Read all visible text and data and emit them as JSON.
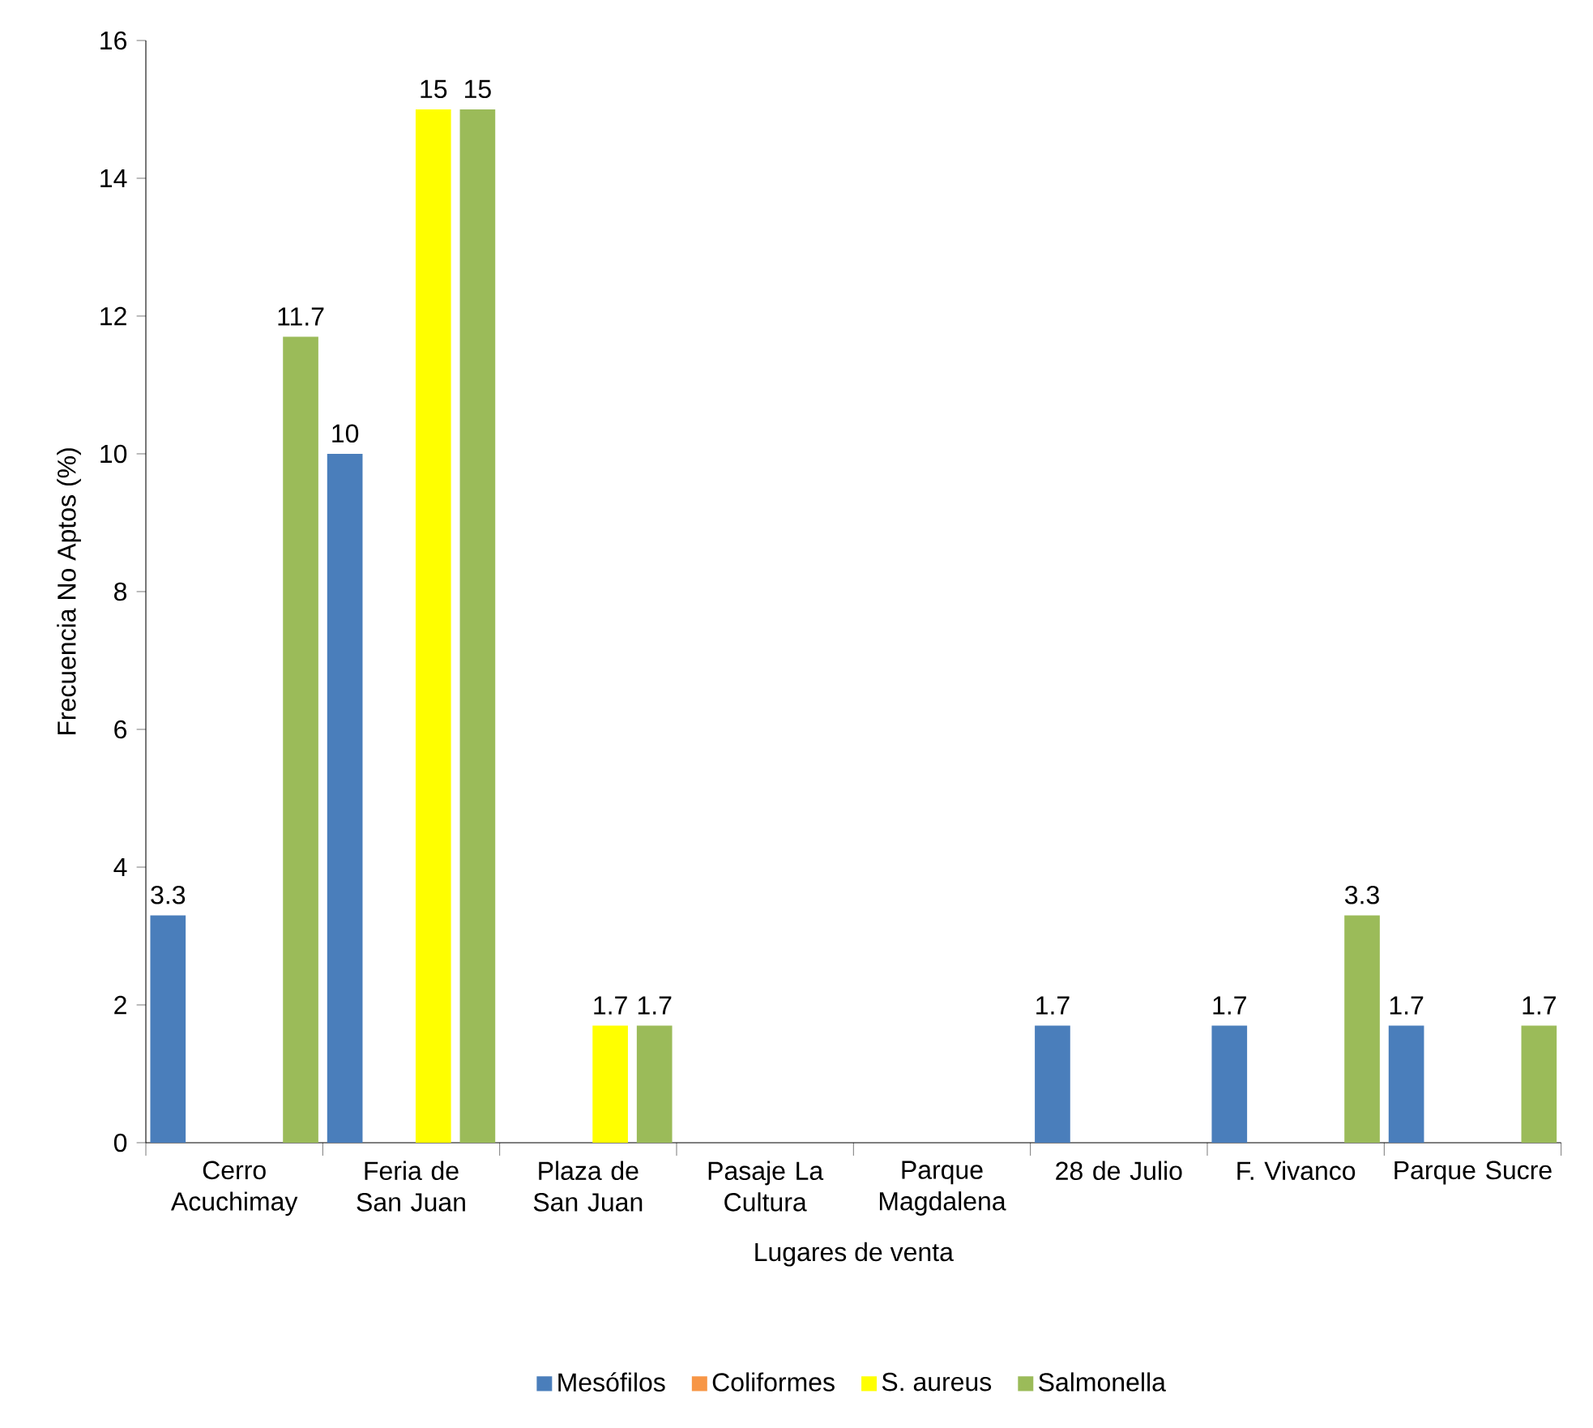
{
  "chart_data": {
    "type": "bar",
    "xlabel": "Lugares de venta",
    "ylabel": "Frecuencia No Aptos (%)",
    "categories": [
      "Cerro Acuchimay",
      "Feria de San Juan",
      "Plaza de San Juan",
      "Pasaje La Cultura",
      "Parque Magdalena",
      "28 de Julio",
      "F. Vivanco",
      "Parque Sucre"
    ],
    "series": [
      {
        "name": "Mesófilos",
        "color": "#4a7ebb",
        "values": [
          3.3,
          10,
          0,
          0,
          0,
          1.7,
          1.7,
          1.7
        ],
        "value_labels": [
          "3.3",
          "10",
          null,
          null,
          null,
          "1.7",
          "1.7",
          "1.7"
        ]
      },
      {
        "name": "Coliformes",
        "color": "#f79646",
        "values": [
          0,
          0,
          0,
          0,
          0,
          0,
          0,
          0
        ]
      },
      {
        "name": "S. aureus",
        "color": "#ffff00",
        "values": [
          0,
          15,
          1.7,
          0,
          0,
          0,
          0,
          0
        ],
        "value_labels": [
          null,
          "15",
          "1.7",
          null,
          null,
          null,
          null,
          null
        ]
      },
      {
        "name": "Salmonella",
        "color": "#9bbb59",
        "values": [
          11.7,
          15,
          1.7,
          0,
          0,
          0,
          3.3,
          1.7
        ],
        "value_labels": [
          "11.7",
          "15",
          "1.7",
          null,
          null,
          null,
          "3.3",
          "1.7"
        ]
      }
    ],
    "ylim": [
      0,
      16
    ],
    "yticks": [
      0,
      2,
      4,
      6,
      8,
      10,
      12,
      14,
      16
    ],
    "grid": false,
    "legend": "bottom"
  }
}
